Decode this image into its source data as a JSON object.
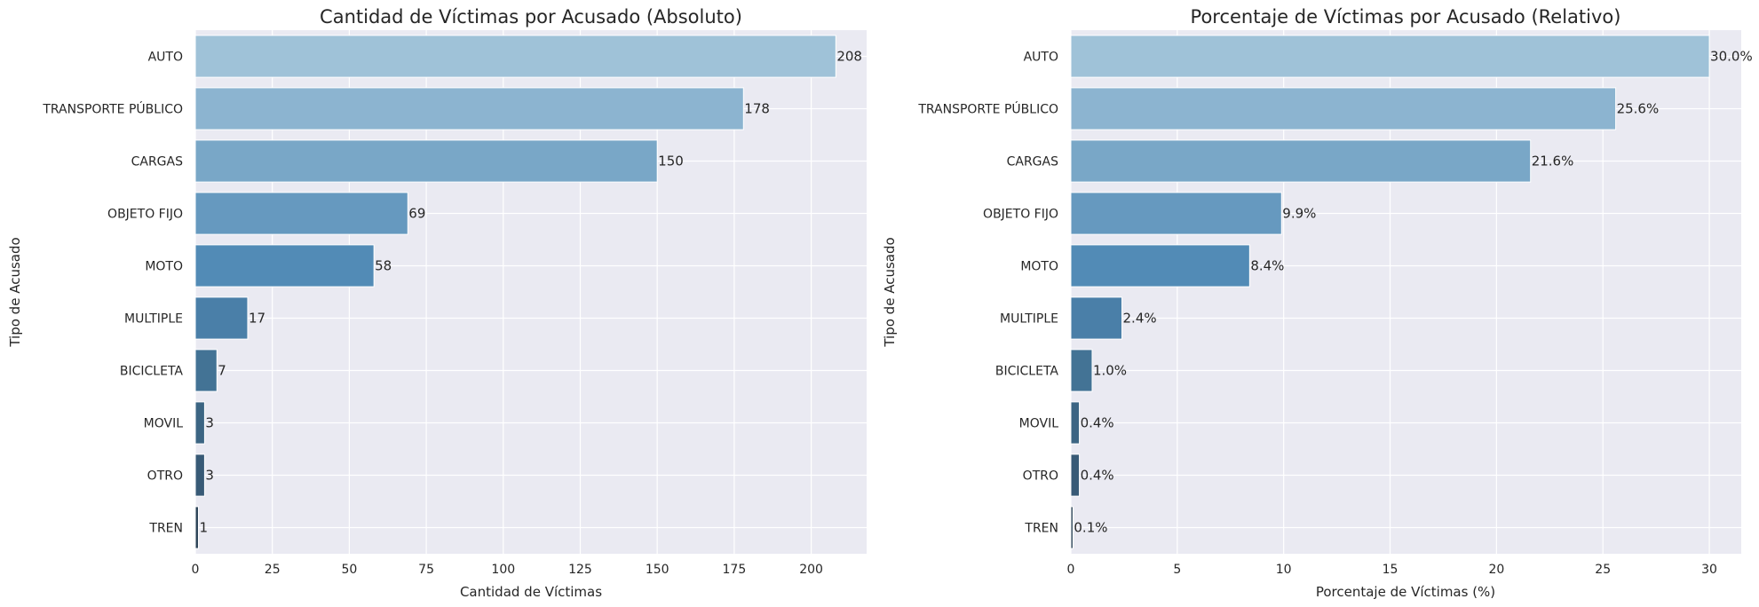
{
  "chart_data": [
    {
      "type": "bar",
      "orientation": "horizontal",
      "title": "Cantidad de Víctimas por Acusado (Absoluto)",
      "xlabel": "Cantidad de Víctimas",
      "ylabel": "Tipo de Acusado",
      "categories": [
        "AUTO",
        "TRANSPORTE PÚBLICO",
        "CARGAS",
        "OBJETO FIJO",
        "MOTO",
        "MULTIPLE",
        "BICICLETA",
        "MOVIL",
        "OTRO",
        "TREN"
      ],
      "values": [
        208,
        178,
        150,
        69,
        58,
        17,
        7,
        3,
        3,
        1
      ],
      "data_labels": [
        "208",
        "178",
        "150",
        "69",
        "58",
        "17",
        "7",
        "3",
        "3",
        "1"
      ],
      "xticks": [
        0,
        25,
        50,
        75,
        100,
        125,
        150,
        175,
        200
      ],
      "xtick_labels": [
        "0",
        "25",
        "50",
        "75",
        "100",
        "125",
        "150",
        "175",
        "200"
      ],
      "xlim": [
        0,
        218
      ],
      "grid": true,
      "legend": "none"
    },
    {
      "type": "bar",
      "orientation": "horizontal",
      "title": "Porcentaje de Víctimas por Acusado (Relativo)",
      "xlabel": "Porcentaje de Víctimas (%)",
      "ylabel": "Tipo de Acusado",
      "categories": [
        "AUTO",
        "TRANSPORTE PÚBLICO",
        "CARGAS",
        "OBJETO FIJO",
        "MOTO",
        "MULTIPLE",
        "BICICLETA",
        "MOVIL",
        "OTRO",
        "TREN"
      ],
      "values": [
        30.0,
        25.6,
        21.6,
        9.9,
        8.4,
        2.4,
        1.0,
        0.4,
        0.4,
        0.1
      ],
      "data_labels": [
        "30.0%",
        "25.6%",
        "21.6%",
        "9.9%",
        "8.4%",
        "2.4%",
        "1.0%",
        "0.4%",
        "0.4%",
        "0.1%"
      ],
      "xticks": [
        0,
        5,
        10,
        15,
        20,
        25,
        30
      ],
      "xtick_labels": [
        "0",
        "5",
        "10",
        "15",
        "20",
        "25",
        "30"
      ],
      "xlim": [
        0,
        31.5
      ],
      "grid": true,
      "legend": "none"
    }
  ],
  "colors": {
    "background": "#ffffff",
    "plot_background": "#eaeaf2",
    "grid": "#ffffff",
    "text": "#262626",
    "bar_palette": [
      "#9fc2d8",
      "#8cb4d0",
      "#79a7c7",
      "#6699bf",
      "#528bb6",
      "#4a7fa8",
      "#437395",
      "#3c6583",
      "#385a76",
      "#2b4357"
    ]
  }
}
